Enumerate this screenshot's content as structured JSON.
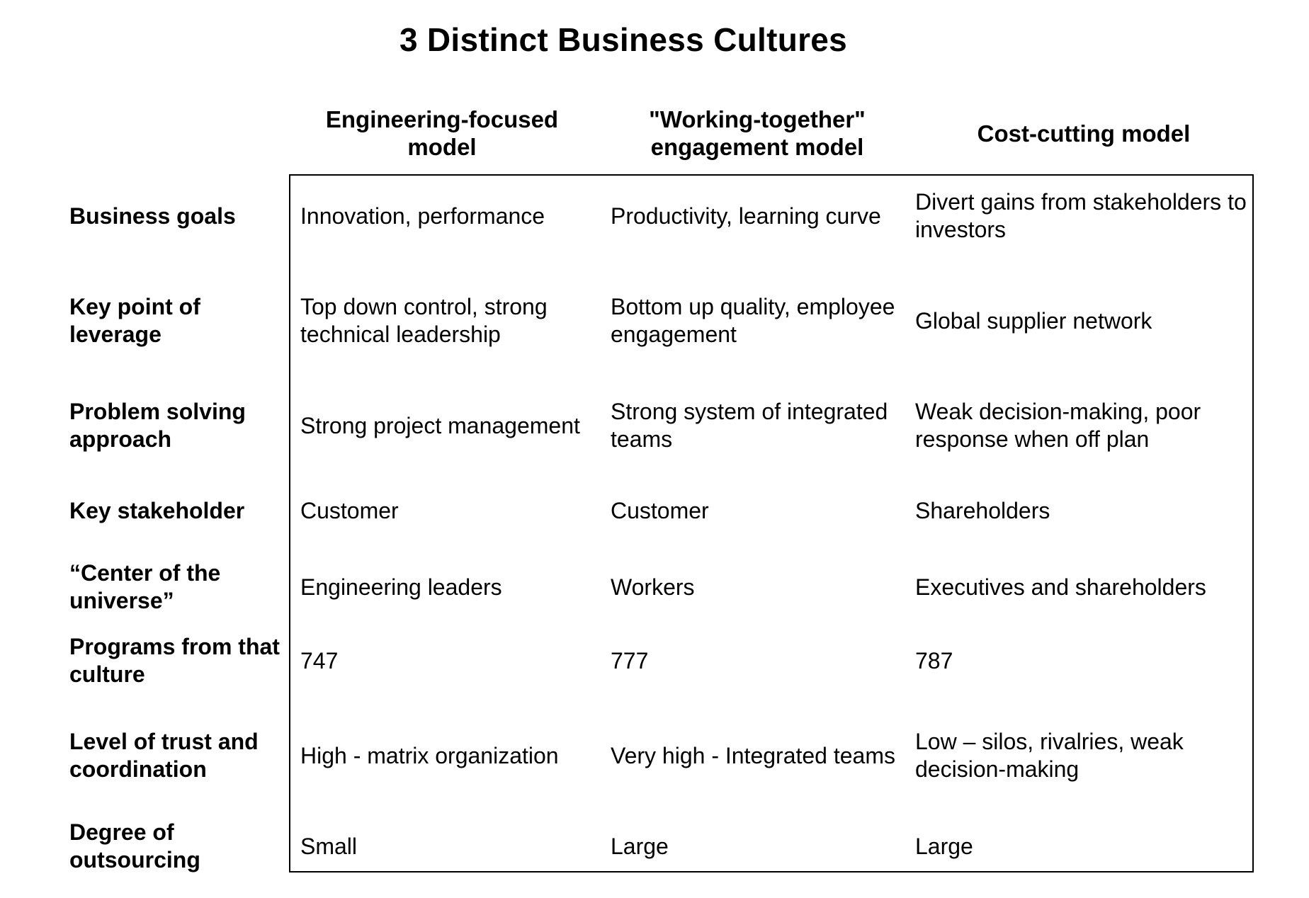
{
  "title": "3 Distinct Business Cultures",
  "columns": [
    "Engineering-focused model",
    "\"Working-together\" engagement model",
    "Cost-cutting model"
  ],
  "rows": [
    {
      "label": "Business goals",
      "values": [
        "Innovation, performance",
        "Productivity, learning curve",
        "Divert gains from stakeholders to investors"
      ]
    },
    {
      "label": "Key point of leverage",
      "values": [
        "Top down control, strong technical leadership",
        "Bottom up quality, employee engagement",
        "Global supplier network"
      ]
    },
    {
      "label": "Problem solving approach",
      "values": [
        "Strong project management",
        "Strong system of integrated teams",
        "Weak decision-making, poor response when off plan"
      ]
    },
    {
      "label": "Key stakeholder",
      "values": [
        "Customer",
        "Customer",
        "Shareholders"
      ]
    },
    {
      "label": "“Center of the universe”",
      "values": [
        "Engineering leaders",
        "Workers",
        "Executives and shareholders"
      ]
    },
    {
      "label": "Programs from that culture",
      "values": [
        "747",
        "777",
        "787"
      ]
    },
    {
      "label": "Level of trust and coordination",
      "values": [
        "High - matrix organization",
        "Very high - Integrated teams",
        "Low – silos, rivalries, weak decision-making"
      ]
    },
    {
      "label": "Degree of outsourcing",
      "values": [
        "Small",
        "Large",
        "Large"
      ]
    }
  ]
}
